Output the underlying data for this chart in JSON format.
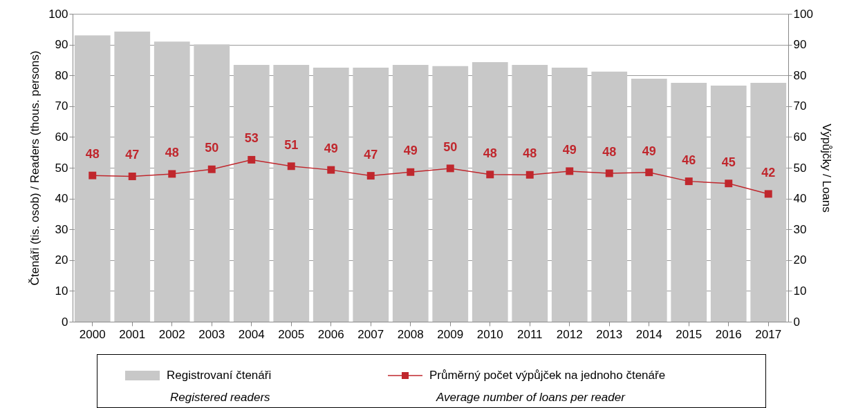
{
  "chart_data": {
    "type": "bar",
    "categories": [
      "2000",
      "2001",
      "2002",
      "2003",
      "2004",
      "2005",
      "2006",
      "2007",
      "2008",
      "2009",
      "2010",
      "2011",
      "2012",
      "2013",
      "2014",
      "2015",
      "2016",
      "2017"
    ],
    "series": [
      {
        "name": "Registrovaní čtenáři",
        "color": "#c8c8c8",
        "values": [
          93.0,
          94.2,
          91.0,
          90.1,
          83.4,
          83.4,
          82.5,
          82.5,
          83.4,
          83.0,
          84.3,
          83.4,
          82.5,
          81.2,
          78.9,
          77.6,
          76.7,
          77.6
        ]
      },
      {
        "name": "Průměrný počet výpůjček na jednoho čtenáře",
        "type": "line",
        "axis": "y2",
        "color": "#c0272d",
        "marker": "square",
        "values": [
          47.5,
          47.2,
          48.0,
          49.5,
          52.6,
          50.5,
          49.3,
          47.4,
          48.6,
          49.8,
          47.8,
          47.7,
          48.9,
          48.2,
          48.5,
          45.6,
          44.9,
          41.5
        ],
        "value_labels": [
          "48",
          "47",
          "48",
          "50",
          "53",
          "51",
          "49",
          "47",
          "49",
          "50",
          "48",
          "48",
          "49",
          "48",
          "49",
          "46",
          "45",
          "42"
        ]
      }
    ],
    "ylabel": "Čtenáři (tis. osob) / Readers (thous. persons)",
    "y2label": "Výpůjčky / Loans",
    "ylim": [
      0,
      100
    ],
    "yticks": [
      0,
      10,
      20,
      30,
      40,
      50,
      60,
      70,
      80,
      90,
      100
    ],
    "y2lim": [
      0,
      100
    ],
    "y2ticks": [
      0,
      10,
      20,
      30,
      40,
      50,
      60,
      70,
      80,
      90,
      100
    ],
    "grid": "y",
    "legend": "bottom",
    "annotations": [
      "Registered readers",
      "Average number of loans per reader"
    ]
  }
}
